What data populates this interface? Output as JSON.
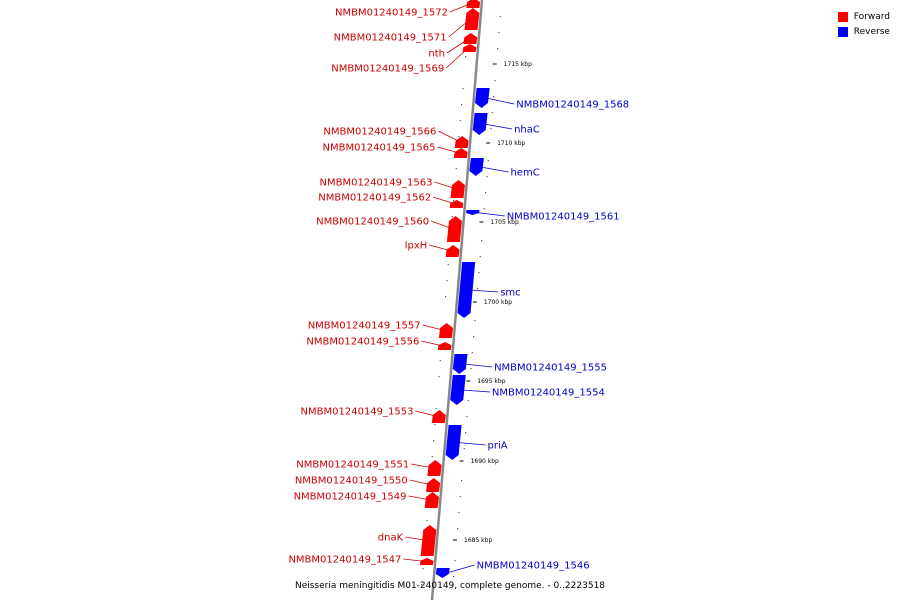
{
  "legend": {
    "items": [
      {
        "label": "Forward",
        "color": "#ff0000"
      },
      {
        "label": "Reverse",
        "color": "#0000ff"
      }
    ]
  },
  "caption": "Neisseria meningitidis M01-240149, complete genome. - 0..2223518",
  "colors": {
    "forward": "#ff0000",
    "reverse": "#0000ff",
    "forward_label": "#cc0000",
    "reverse_label": "#0000cc",
    "backbone": "#888888"
  },
  "scale": {
    "ticks": [
      "1715 kbp",
      "1710 kbp",
      "1705 kbp",
      "1700 kbp",
      "1695 kbp",
      "1690 kbp",
      "1685 kbp"
    ]
  },
  "genes": [
    {
      "name": "NMBM01240149_1572",
      "strand": "forward"
    },
    {
      "name": "NMBM01240149_1571",
      "strand": "forward"
    },
    {
      "name": "nth",
      "strand": "forward"
    },
    {
      "name": "NMBM01240149_1569",
      "strand": "forward"
    },
    {
      "name": "NMBM01240149_1568",
      "strand": "reverse"
    },
    {
      "name": "nhaC",
      "strand": "reverse"
    },
    {
      "name": "NMBM01240149_1566",
      "strand": "forward"
    },
    {
      "name": "NMBM01240149_1565",
      "strand": "forward"
    },
    {
      "name": "hemC",
      "strand": "reverse"
    },
    {
      "name": "NMBM01240149_1563",
      "strand": "forward"
    },
    {
      "name": "NMBM01240149_1562",
      "strand": "forward"
    },
    {
      "name": "NMBM01240149_1561",
      "strand": "reverse"
    },
    {
      "name": "NMBM01240149_1560",
      "strand": "forward"
    },
    {
      "name": "lpxH",
      "strand": "forward"
    },
    {
      "name": "smc",
      "strand": "reverse"
    },
    {
      "name": "NMBM01240149_1557",
      "strand": "forward"
    },
    {
      "name": "NMBM01240149_1556",
      "strand": "forward"
    },
    {
      "name": "NMBM01240149_1555",
      "strand": "reverse"
    },
    {
      "name": "NMBM01240149_1554",
      "strand": "reverse"
    },
    {
      "name": "NMBM01240149_1553",
      "strand": "forward"
    },
    {
      "name": "priA",
      "strand": "reverse"
    },
    {
      "name": "NMBM01240149_1551",
      "strand": "forward"
    },
    {
      "name": "NMBM01240149_1550",
      "strand": "forward"
    },
    {
      "name": "NMBM01240149_1549",
      "strand": "forward"
    },
    {
      "name": "dnaK",
      "strand": "forward"
    },
    {
      "name": "NMBM01240149_1547",
      "strand": "forward"
    },
    {
      "name": "NMBM01240149_1546",
      "strand": "reverse"
    }
  ]
}
